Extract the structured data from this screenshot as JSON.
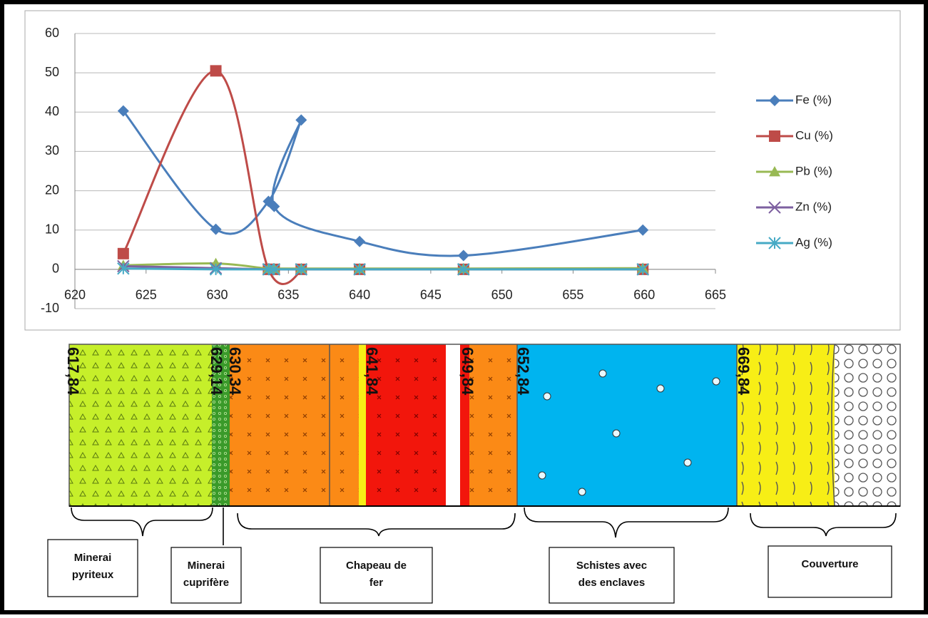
{
  "chart_data": {
    "type": "scatter-smooth",
    "x": [
      623.4,
      629.9,
      633.6,
      635.9,
      634,
      640,
      647.3,
      659.9
    ],
    "series": [
      {
        "name": "Fe (%)",
        "color": "#4a7ebb",
        "marker": "diamond",
        "values": [
          40.3,
          10.2,
          17.3,
          38,
          16,
          7.1,
          3.5,
          10
        ]
      },
      {
        "name": "Cu (%)",
        "color": "#be4b48",
        "marker": "square",
        "values": [
          4,
          50.5,
          0,
          0,
          0,
          0,
          0,
          0
        ]
      },
      {
        "name": "Pb (%)",
        "color": "#98b954",
        "marker": "triangle",
        "values": [
          1,
          1.5,
          0.2,
          0.2,
          0.2,
          0.2,
          0.2,
          0.3
        ]
      },
      {
        "name": "Zn (%)",
        "color": "#7d60a0",
        "marker": "x",
        "values": [
          0.8,
          0.3,
          0,
          0,
          0,
          0,
          0,
          0
        ]
      },
      {
        "name": "Ag (%)",
        "color": "#46aac5",
        "marker": "star",
        "values": [
          0.2,
          0,
          0,
          0,
          0,
          0,
          0,
          0
        ]
      }
    ],
    "xlim": [
      620,
      665
    ],
    "xticks": [
      620,
      625,
      630,
      635,
      640,
      645,
      650,
      655,
      660,
      665
    ],
    "ylim": [
      -10,
      60
    ],
    "yticks": [
      -10,
      0,
      10,
      20,
      30,
      40,
      50,
      60
    ],
    "grid": true,
    "legend": "right"
  },
  "column": {
    "depth_labels": [
      "617,84",
      "629,14",
      "630,34",
      "641,84",
      "649,84",
      "652,84",
      "669,84"
    ],
    "units": [
      [
        "Minerai",
        "pyriteux"
      ],
      [
        "Minerai",
        "cuprifère"
      ],
      [
        "Chapeau de",
        "fer"
      ],
      [
        "Schistes avec",
        "des enclaves"
      ],
      [
        "Couverture"
      ]
    ]
  }
}
